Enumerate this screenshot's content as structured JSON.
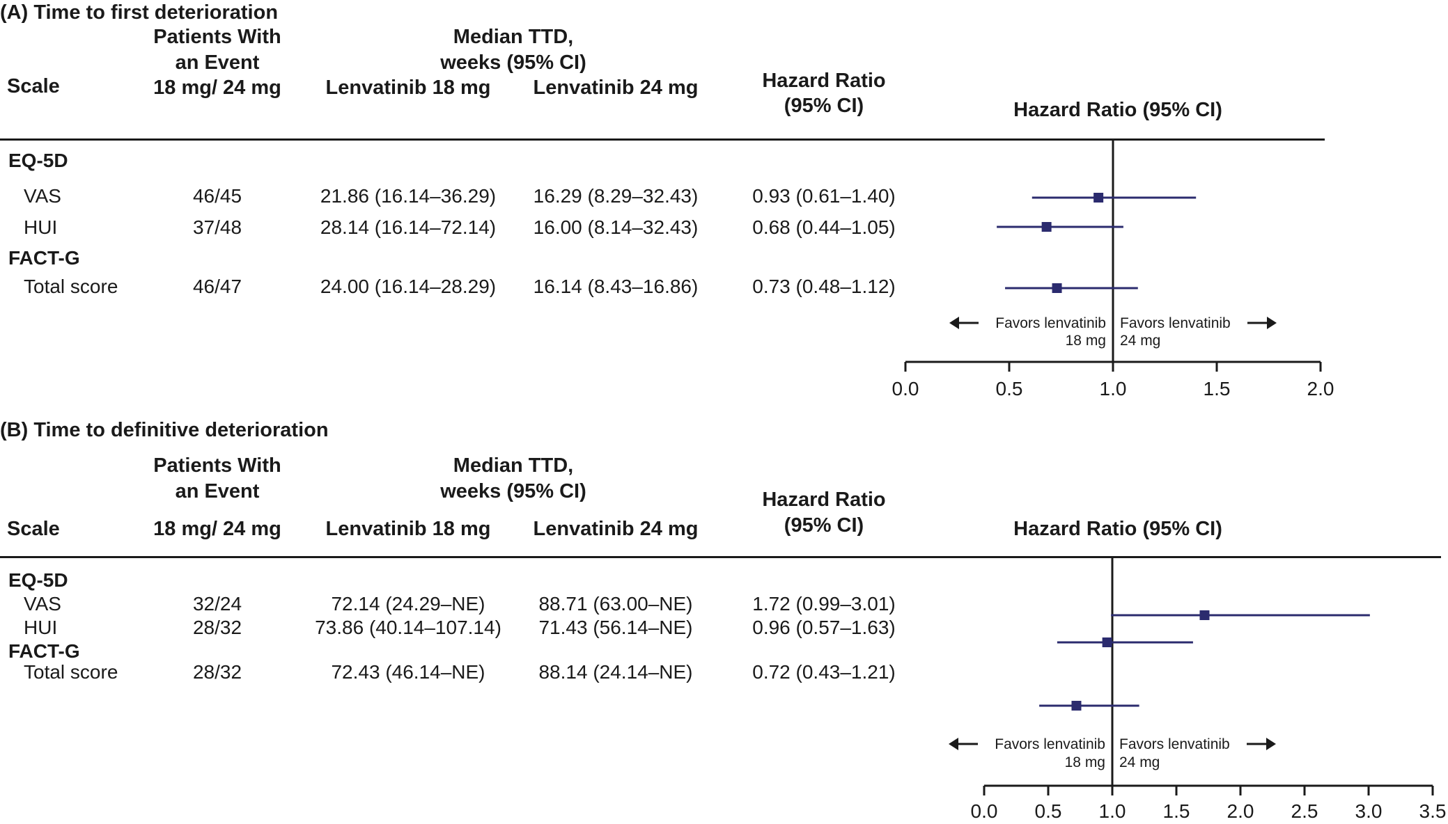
{
  "colors": {
    "marker": "#2b2b6e",
    "axis": "#1a1a1a"
  },
  "columns": {
    "scale": "Scale",
    "patients": [
      "Patients With",
      "an Event",
      "18 mg/ 24 mg"
    ],
    "median": [
      "Median TTD,",
      "weeks (95% CI)"
    ],
    "len18": "Lenvatinib 18 mg",
    "len24": "Lenvatinib 24 mg",
    "hr": [
      "Hazard Ratio",
      "(95% CI)"
    ],
    "plot": "Hazard Ratio (95% CI)"
  },
  "favors": {
    "left": [
      "Favors lenvatinib",
      "18 mg"
    ],
    "right": [
      "Favors lenvatinib",
      "24 mg"
    ]
  },
  "panels": [
    {
      "title": "(A) Time to first deterioration",
      "sections": [
        "EQ-5D",
        "FACT-G"
      ],
      "rows": [
        {
          "label": "VAS",
          "patients": "46/45",
          "len18": "21.86 (16.14–36.29)",
          "len24": "16.29 (8.29–32.43)",
          "hr": "0.93 (0.61–1.40)"
        },
        {
          "label": "HUI",
          "patients": "37/48",
          "len18": "28.14 (16.14–72.14)",
          "len24": "16.00 (8.14–32.43)",
          "hr": "0.68 (0.44–1.05)"
        },
        {
          "label": "Total score",
          "patients": "46/47",
          "len18": "24.00 (16.14–28.29)",
          "len24": "16.14 (8.43–16.86)",
          "hr": "0.73 (0.48–1.12)"
        }
      ]
    },
    {
      "title": "(B) Time to definitive deterioration",
      "sections": [
        "EQ-5D",
        "FACT-G"
      ],
      "rows": [
        {
          "label": "VAS",
          "patients": "32/24",
          "len18": "72.14 (24.29–NE)",
          "len24": "88.71 (63.00–NE)",
          "hr": "1.72 (0.99–3.01)"
        },
        {
          "label": "HUI",
          "patients": "28/32",
          "len18": "73.86 (40.14–107.14)",
          "len24": "71.43 (56.14–NE)",
          "hr": "0.96 (0.57–1.63)"
        },
        {
          "label": "Total score",
          "patients": "28/32",
          "len18": "72.43 (46.14–NE)",
          "len24": "88.14 (24.14–NE)",
          "hr": "0.72 (0.43–1.21)"
        }
      ]
    }
  ],
  "chart_data": [
    {
      "type": "scatter",
      "title": "(A) Time to first deterioration",
      "xlabel": "Hazard Ratio (95% CI)",
      "xlim": [
        0,
        2
      ],
      "xticks": [
        "0.0",
        "0.5",
        "1.0",
        "1.5",
        "2.0"
      ],
      "reference_line": 1.0,
      "categories": [
        "VAS",
        "HUI",
        "Total score"
      ],
      "estimate": [
        0.93,
        0.68,
        0.73
      ],
      "lower": [
        0.61,
        0.44,
        0.48
      ],
      "upper": [
        1.4,
        1.05,
        1.12
      ]
    },
    {
      "type": "scatter",
      "title": "(B) Time to definitive deterioration",
      "xlabel": "Hazard Ratio (95% CI)",
      "xlim": [
        0,
        3.5
      ],
      "xticks": [
        "0.0",
        "0.5",
        "1.0",
        "1.5",
        "2.0",
        "2.5",
        "3.0",
        "3.5"
      ],
      "reference_line": 1.0,
      "categories": [
        "VAS",
        "HUI",
        "Total score"
      ],
      "estimate": [
        1.72,
        0.96,
        0.72
      ],
      "lower": [
        0.99,
        0.57,
        0.43
      ],
      "upper": [
        3.01,
        1.63,
        1.21
      ]
    }
  ]
}
